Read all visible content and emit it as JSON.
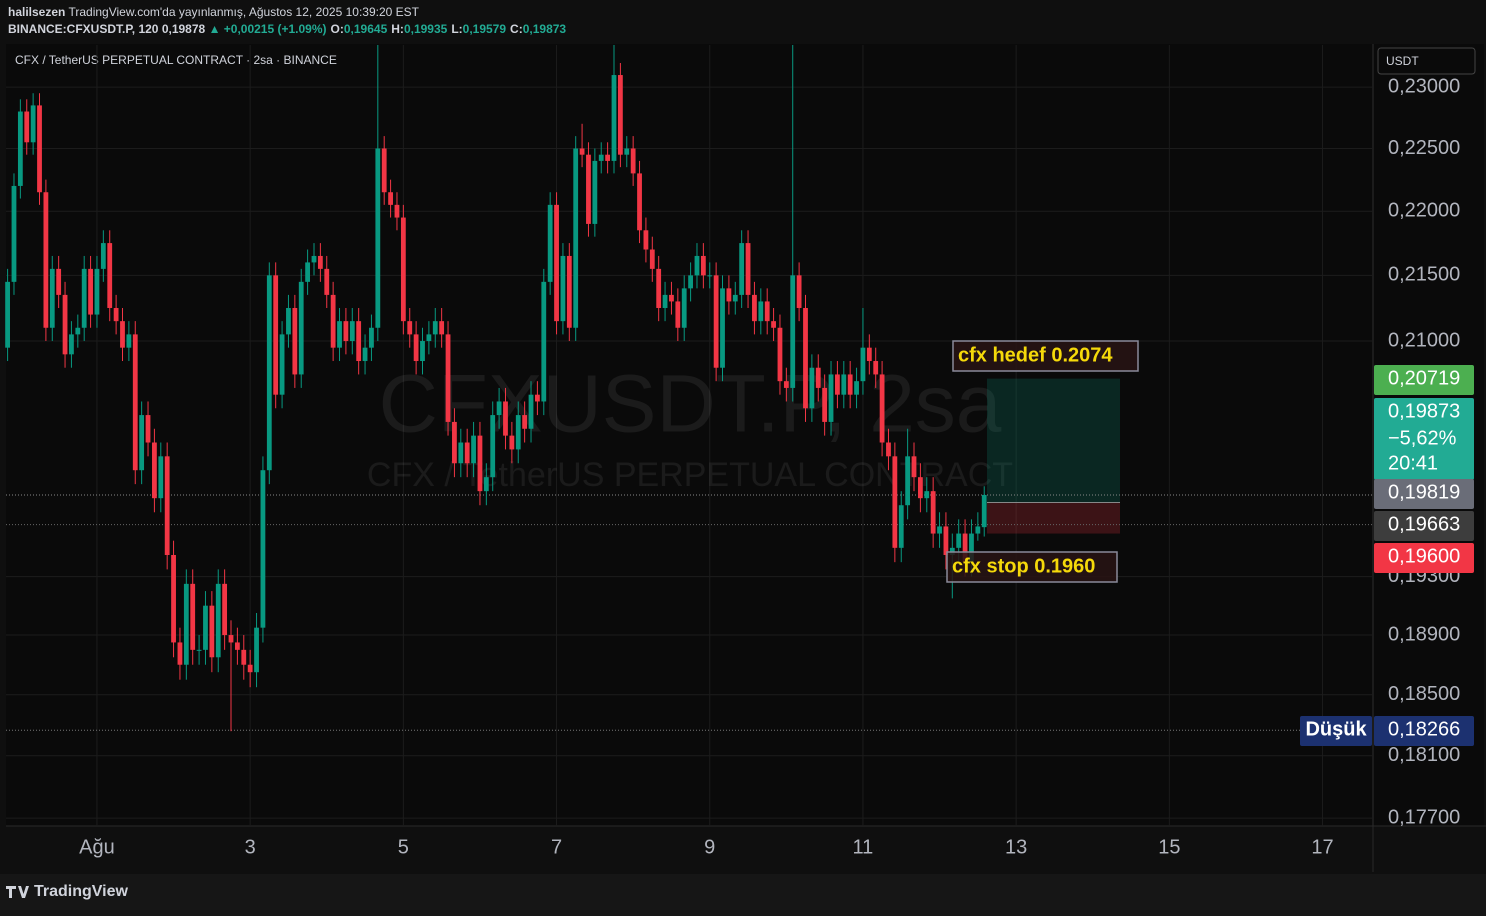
{
  "header": {
    "user": "halilsezen",
    "published": "TradingView.com'da yayınlanmış, Ağustos 12, 2025 10:39:20 EST",
    "symbol": "BINANCE:CFXUSDT.P, 120",
    "last": "0,19878",
    "change": "▲ +0,00215 (+1.09%)",
    "ohlc": [
      {
        "key": "O:",
        "value": "0,19645"
      },
      {
        "key": "H:",
        "value": "0,19935"
      },
      {
        "key": "L:",
        "value": "0,19579"
      },
      {
        "key": "C:",
        "value": "0,19873"
      }
    ]
  },
  "footer": {
    "brand": "TradingView"
  },
  "chart_data": {
    "type": "candlestick",
    "legend": "CFX / TetherUS PERPETUAL CONTRACT · 2sa · BINANCE",
    "watermark": "CFXUSDT.P, 2sa",
    "watermark_subtitle": "CFX / TetherUS PERPETUAL CONTRACT",
    "currency": "USDT",
    "up_color": "#089981",
    "down_color": "#f23645",
    "grid": true,
    "log_scale": true,
    "xlim": [
      -28.5,
      399.5
    ],
    "xticks": [
      {
        "value": 0,
        "label": "Ağu"
      },
      {
        "value": 48,
        "label": "3"
      },
      {
        "value": 96,
        "label": "5"
      },
      {
        "value": 144,
        "label": "7"
      },
      {
        "value": 192,
        "label": "9"
      },
      {
        "value": 240,
        "label": "11"
      },
      {
        "value": 288,
        "label": "13"
      },
      {
        "value": 336,
        "label": "15"
      },
      {
        "value": 384,
        "label": "17"
      }
    ],
    "ylim": [
      0.1765,
      0.2335
    ],
    "yticks": [
      {
        "value": 0.23,
        "label": "0,23000"
      },
      {
        "value": 0.225,
        "label": "0,22500"
      },
      {
        "value": 0.22,
        "label": "0,22000"
      },
      {
        "value": 0.215,
        "label": "0,21500"
      },
      {
        "value": 0.21,
        "label": "0,21000"
      },
      {
        "value": 0.193,
        "label": "0,19300"
      },
      {
        "value": 0.189,
        "label": "0,18900"
      },
      {
        "value": 0.185,
        "label": "0,18500"
      },
      {
        "value": 0.181,
        "label": "0,18100"
      },
      {
        "value": 0.177,
        "label": "0,17700"
      }
    ],
    "x": [
      -28,
      -26,
      -24,
      -22,
      -20,
      -18,
      -16,
      -14,
      -12,
      -10,
      -8,
      -6,
      -4,
      -2,
      0,
      2,
      4,
      6,
      8,
      10,
      12,
      14,
      16,
      18,
      20,
      22,
      24,
      26,
      28,
      30,
      32,
      34,
      36,
      38,
      40,
      42,
      44,
      46,
      48,
      50,
      52,
      54,
      56,
      58,
      60,
      62,
      64,
      66,
      68,
      70,
      72,
      74,
      76,
      78,
      80,
      82,
      84,
      86,
      88,
      90,
      92,
      94,
      96,
      98,
      100,
      102,
      104,
      106,
      108,
      110,
      112,
      114,
      116,
      118,
      120,
      122,
      124,
      126,
      128,
      130,
      132,
      134,
      136,
      138,
      140,
      142,
      144,
      146,
      148,
      150,
      152,
      154,
      156,
      158,
      160,
      162,
      164,
      166,
      168,
      170,
      172,
      174,
      176,
      178,
      180,
      182,
      184,
      186,
      188,
      190,
      192,
      194,
      196,
      198,
      200,
      202,
      204,
      206,
      208,
      210,
      212,
      214,
      216,
      218,
      220,
      222,
      224,
      226,
      228,
      230,
      232,
      234,
      236,
      238,
      240,
      242,
      244,
      246,
      248,
      250,
      252,
      254,
      256,
      258,
      260,
      262,
      264,
      266,
      268,
      270,
      272,
      274,
      276,
      278
    ],
    "open": [
      0.2095,
      0.2145,
      0.222,
      0.228,
      0.2255,
      0.2285,
      0.2215,
      0.211,
      0.2155,
      0.2135,
      0.209,
      0.2105,
      0.211,
      0.2155,
      0.212,
      0.2155,
      0.2175,
      0.2125,
      0.2115,
      0.2095,
      0.2105,
      0.2005,
      0.2045,
      0.2025,
      0.1985,
      0.2015,
      0.1945,
      0.1885,
      0.187,
      0.1925,
      0.188,
      0.188,
      0.191,
      0.1875,
      0.1925,
      0.189,
      0.1885,
      0.188,
      0.187,
      0.1865,
      0.1895,
      0.2005,
      0.215,
      0.206,
      0.2105,
      0.2125,
      0.2075,
      0.2145,
      0.216,
      0.2165,
      0.2155,
      0.2135,
      0.2095,
      0.2115,
      0.21,
      0.2115,
      0.2085,
      0.2095,
      0.211,
      0.225,
      0.2215,
      0.2205,
      0.2195,
      0.2115,
      0.2105,
      0.2085,
      0.21,
      0.2105,
      0.2115,
      0.2105,
      0.204,
      0.201,
      0.2025,
      0.201,
      0.203,
      0.199,
      0.2,
      0.2045,
      0.2055,
      0.203,
      0.202,
      0.2045,
      0.2035,
      0.206,
      0.2055,
      0.2145,
      0.2205,
      0.2115,
      0.2165,
      0.211,
      0.225,
      0.2245,
      0.219,
      0.224,
      0.2245,
      0.224,
      0.231,
      0.2245,
      0.225,
      0.223,
      0.2185,
      0.217,
      0.2155,
      0.2125,
      0.2135,
      0.213,
      0.211,
      0.214,
      0.215,
      0.2165,
      0.215,
      0.215,
      0.208,
      0.214,
      0.213,
      0.2135,
      0.2175,
      0.2135,
      0.2115,
      0.213,
      0.2115,
      0.211,
      0.207,
      0.2065,
      0.215,
      0.2125,
      0.205,
      0.208,
      0.2065,
      0.204,
      0.2075,
      0.206,
      0.2075,
      0.206,
      0.207,
      0.2095,
      0.2085,
      0.2075,
      0.2025,
      0.2015,
      0.195,
      0.198,
      0.2015,
      0.2,
      0.1985,
      0.199,
      0.196,
      0.1965,
      0.1945,
      0.195,
      0.196,
      0.194,
      0.196,
      0.19645
    ],
    "high": [
      0.2155,
      0.223,
      0.229,
      0.229,
      0.2295,
      0.2295,
      0.2225,
      0.2165,
      0.2165,
      0.2145,
      0.2115,
      0.212,
      0.2165,
      0.2165,
      0.2165,
      0.2185,
      0.2185,
      0.2135,
      0.2125,
      0.2115,
      0.2115,
      0.2055,
      0.2055,
      0.2035,
      0.2025,
      0.2025,
      0.1955,
      0.1895,
      0.1935,
      0.1935,
      0.189,
      0.192,
      0.192,
      0.1935,
      0.1935,
      0.19,
      0.1895,
      0.189,
      0.188,
      0.1905,
      0.2015,
      0.216,
      0.216,
      0.2115,
      0.2135,
      0.2135,
      0.2155,
      0.217,
      0.2175,
      0.2175,
      0.2165,
      0.2145,
      0.2125,
      0.2125,
      0.2125,
      0.2125,
      0.2105,
      0.212,
      0.2335,
      0.226,
      0.2225,
      0.2215,
      0.2205,
      0.2125,
      0.2115,
      0.211,
      0.2115,
      0.2125,
      0.2125,
      0.2115,
      0.205,
      0.2035,
      0.2035,
      0.204,
      0.204,
      0.201,
      0.2055,
      0.2065,
      0.2065,
      0.204,
      0.2055,
      0.2055,
      0.207,
      0.207,
      0.2155,
      0.2215,
      0.2215,
      0.2175,
      0.2175,
      0.226,
      0.227,
      0.2255,
      0.225,
      0.2255,
      0.2255,
      0.2335,
      0.232,
      0.226,
      0.226,
      0.224,
      0.2195,
      0.218,
      0.2165,
      0.2145,
      0.2145,
      0.214,
      0.215,
      0.216,
      0.2175,
      0.2175,
      0.216,
      0.216,
      0.215,
      0.215,
      0.2145,
      0.2185,
      0.2185,
      0.2145,
      0.214,
      0.214,
      0.2125,
      0.212,
      0.208,
      0.2335,
      0.216,
      0.2135,
      0.209,
      0.209,
      0.2075,
      0.2085,
      0.2085,
      0.2085,
      0.2085,
      0.208,
      0.2125,
      0.2105,
      0.2095,
      0.2085,
      0.2035,
      0.2025,
      0.199,
      0.2035,
      0.2025,
      0.201,
      0.2,
      0.2,
      0.1975,
      0.1975,
      0.196,
      0.197,
      0.197,
      0.197,
      0.1975,
      0.19935
    ],
    "low": [
      0.2085,
      0.2135,
      0.221,
      0.2245,
      0.2245,
      0.2205,
      0.21,
      0.21,
      0.2125,
      0.208,
      0.208,
      0.2095,
      0.21,
      0.211,
      0.211,
      0.2145,
      0.2115,
      0.2105,
      0.2085,
      0.2085,
      0.1995,
      0.1995,
      0.2015,
      0.1975,
      0.1975,
      0.1935,
      0.1875,
      0.186,
      0.186,
      0.187,
      0.187,
      0.187,
      0.1865,
      0.1865,
      0.188,
      0.1826,
      0.187,
      0.186,
      0.1855,
      0.1855,
      0.1885,
      0.1995,
      0.205,
      0.205,
      0.2095,
      0.2065,
      0.2065,
      0.2135,
      0.215,
      0.2145,
      0.2125,
      0.2085,
      0.2085,
      0.209,
      0.209,
      0.2075,
      0.2075,
      0.2085,
      0.21,
      0.2205,
      0.2195,
      0.2185,
      0.2105,
      0.2095,
      0.2075,
      0.2075,
      0.209,
      0.2095,
      0.2095,
      0.203,
      0.2,
      0.2,
      0.2,
      0.2,
      0.198,
      0.198,
      0.199,
      0.2035,
      0.202,
      0.201,
      0.201,
      0.2025,
      0.2025,
      0.2045,
      0.2045,
      0.2135,
      0.2105,
      0.2105,
      0.21,
      0.21,
      0.2235,
      0.218,
      0.218,
      0.223,
      0.223,
      0.223,
      0.2235,
      0.2235,
      0.222,
      0.2175,
      0.216,
      0.2145,
      0.2115,
      0.2115,
      0.212,
      0.21,
      0.21,
      0.213,
      0.214,
      0.214,
      0.214,
      0.207,
      0.207,
      0.212,
      0.212,
      0.2125,
      0.2125,
      0.2105,
      0.2105,
      0.2105,
      0.21,
      0.206,
      0.2055,
      0.2055,
      0.2115,
      0.204,
      0.204,
      0.2055,
      0.203,
      0.203,
      0.205,
      0.205,
      0.205,
      0.205,
      0.206,
      0.2075,
      0.2065,
      0.2015,
      0.2005,
      0.194,
      0.194,
      0.197,
      0.199,
      0.1975,
      0.1975,
      0.195,
      0.195,
      0.1935,
      0.1915,
      0.194,
      0.193,
      0.193,
      0.1955,
      0.19579
    ],
    "close": [
      0.2145,
      0.222,
      0.228,
      0.2255,
      0.2285,
      0.2215,
      0.211,
      0.2155,
      0.2135,
      0.209,
      0.2105,
      0.211,
      0.2155,
      0.212,
      0.2155,
      0.2175,
      0.2125,
      0.2115,
      0.2095,
      0.2105,
      0.2005,
      0.2045,
      0.2025,
      0.1985,
      0.2015,
      0.1945,
      0.1885,
      0.187,
      0.1925,
      0.188,
      0.188,
      0.191,
      0.1875,
      0.1925,
      0.189,
      0.1885,
      0.188,
      0.187,
      0.1865,
      0.1895,
      0.2005,
      0.215,
      0.206,
      0.2105,
      0.2125,
      0.2075,
      0.2145,
      0.216,
      0.2165,
      0.2155,
      0.2135,
      0.2095,
      0.2115,
      0.21,
      0.2115,
      0.2085,
      0.2095,
      0.211,
      0.225,
      0.2215,
      0.2205,
      0.2195,
      0.2115,
      0.2105,
      0.2085,
      0.21,
      0.2105,
      0.2115,
      0.2105,
      0.204,
      0.201,
      0.2025,
      0.201,
      0.203,
      0.199,
      0.2,
      0.2045,
      0.2055,
      0.203,
      0.202,
      0.2045,
      0.2035,
      0.206,
      0.2055,
      0.2145,
      0.2205,
      0.2115,
      0.2165,
      0.211,
      0.225,
      0.2245,
      0.219,
      0.224,
      0.2245,
      0.224,
      0.231,
      0.2245,
      0.225,
      0.223,
      0.2185,
      0.217,
      0.2155,
      0.2125,
      0.2135,
      0.213,
      0.211,
      0.214,
      0.215,
      0.2165,
      0.215,
      0.215,
      0.208,
      0.214,
      0.213,
      0.2135,
      0.2175,
      0.2135,
      0.2115,
      0.213,
      0.2115,
      0.211,
      0.207,
      0.2065,
      0.215,
      0.2125,
      0.205,
      0.208,
      0.2065,
      0.204,
      0.2075,
      0.206,
      0.2075,
      0.206,
      0.207,
      0.2095,
      0.2085,
      0.2075,
      0.2025,
      0.2015,
      0.195,
      0.198,
      0.2015,
      0.2,
      0.1985,
      0.199,
      0.196,
      0.1965,
      0.1945,
      0.195,
      0.196,
      0.194,
      0.196,
      0.1965,
      0.19873
    ],
    "price_labels": [
      {
        "value": 0.20719,
        "label": "0,20719",
        "color": "#4caf50"
      },
      {
        "value": 0.19873,
        "label": "0,19873",
        "change": "−5,62%",
        "countdown": "20:41",
        "color": "#22ab94"
      },
      {
        "value": 0.19819,
        "label": "0,19819",
        "color": "#6a6d78"
      },
      {
        "value": 0.19663,
        "label": "0,19663",
        "color": "#3d3d3d"
      },
      {
        "value": 0.196,
        "label": "0,19600",
        "color": "#f23645"
      },
      {
        "value": 0.18266,
        "label": "0,18266",
        "name": "Düşük",
        "color": "#1c3170"
      }
    ],
    "annotations": [
      {
        "text": "cfx hedef 0.2074"
      },
      {
        "text": "cfx stop 0.1960"
      }
    ]
  }
}
